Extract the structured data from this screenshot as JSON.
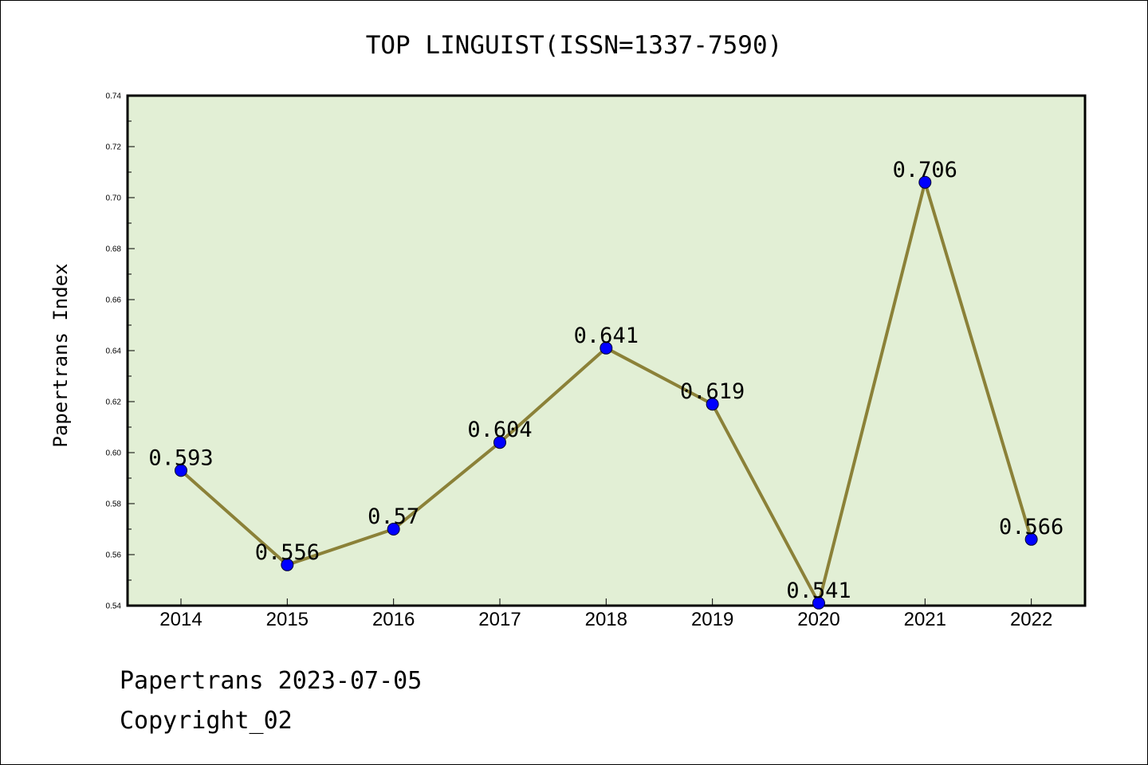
{
  "chart_data": {
    "type": "line",
    "title": "TOP LINGUIST(ISSN=1337-7590)",
    "xlabel": "",
    "ylabel": "Papertrans Index",
    "categories": [
      "2014",
      "2015",
      "2016",
      "2017",
      "2018",
      "2019",
      "2020",
      "2021",
      "2022"
    ],
    "series": [
      {
        "values": [
          0.593,
          0.556,
          0.57,
          0.604,
          0.641,
          0.619,
          0.541,
          0.706,
          0.566
        ],
        "data_labels": [
          "0.593",
          "0.556",
          "0.57",
          "0.604",
          "0.641",
          "0.619",
          "0.541",
          "0.706",
          "0.566"
        ]
      }
    ],
    "ylim": [
      0.54,
      0.74
    ],
    "yticks": [
      "0.54",
      "0.56",
      "0.58",
      "0.60",
      "0.62",
      "0.64",
      "0.66",
      "0.68",
      "0.70",
      "0.72",
      "0.74"
    ],
    "grid": false,
    "colors": {
      "plot_background": "#e2efd5",
      "line": "#8b8138",
      "marker": "#0000ff"
    }
  },
  "footer": {
    "line1": "Papertrans 2023-07-05",
    "line2": "Copyright_02"
  }
}
